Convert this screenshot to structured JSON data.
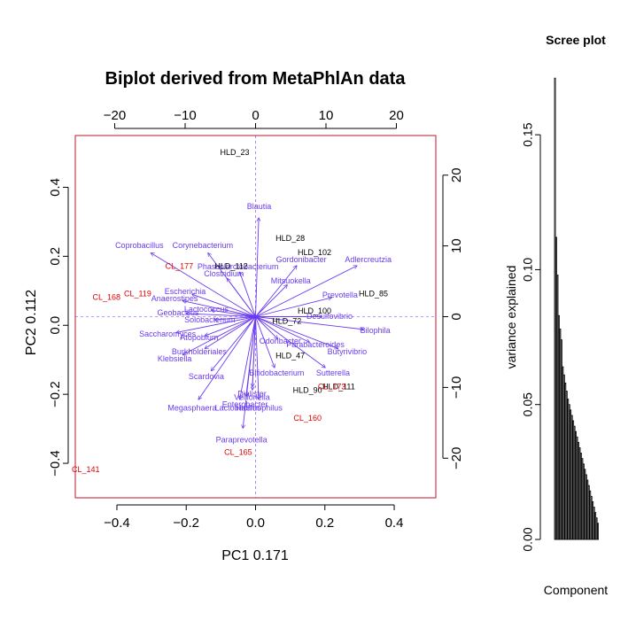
{
  "chart_data": [
    {
      "type": "scatter",
      "title": "Biplot derived from MetaPhlAn data",
      "xlabel": "PC1 0.171",
      "ylabel": "PC2 0.112",
      "xlim": [
        -0.52,
        0.52
      ],
      "ylim": [
        -0.5,
        0.55
      ],
      "x_ticks": [
        "−0.4",
        "−0.2",
        "0.0",
        "0.2",
        "0.4"
      ],
      "x_tick_values": [
        -0.4,
        -0.2,
        0.0,
        0.2,
        0.4
      ],
      "y_ticks": [
        "−0.4",
        "−0.2",
        "0.0",
        "0.2",
        "0.4"
      ],
      "y_tick_values": [
        -0.4,
        -0.2,
        0.0,
        0.2,
        0.4
      ],
      "top_ticks": [
        "−20",
        "−10",
        "0",
        "10",
        "20"
      ],
      "top_tick_values": [
        -20,
        -10,
        0,
        10,
        20
      ],
      "right_ticks": [
        "−20",
        "−10",
        "0",
        "10",
        "20"
      ],
      "right_tick_values": [
        -20,
        -10,
        0,
        10,
        20
      ],
      "secondary_lim": [
        -25.6,
        25.6
      ],
      "colors": {
        "loadings": "#6a3af0",
        "samples_hld": "#000000",
        "samples_cl": "#e00000",
        "frame": "#c0152a"
      },
      "samples": [
        {
          "label": "HLD_23",
          "x": -0.06,
          "y": 0.5,
          "group": "HLD"
        },
        {
          "label": "HLD_28",
          "x": 0.1,
          "y": 0.25,
          "group": "HLD"
        },
        {
          "label": "HLD_102",
          "x": 0.17,
          "y": 0.21,
          "group": "HLD"
        },
        {
          "label": "HLD_112",
          "x": -0.07,
          "y": 0.17,
          "group": "HLD"
        },
        {
          "label": "HLD_85",
          "x": 0.34,
          "y": 0.09,
          "group": "HLD"
        },
        {
          "label": "HLD_100",
          "x": 0.17,
          "y": 0.04,
          "group": "HLD"
        },
        {
          "label": "HLD_72",
          "x": 0.09,
          "y": 0.01,
          "group": "HLD"
        },
        {
          "label": "HLD_47",
          "x": 0.1,
          "y": -0.09,
          "group": "HLD"
        },
        {
          "label": "HLD_90",
          "x": 0.15,
          "y": -0.19,
          "group": "HLD"
        },
        {
          "label": "HLD_111",
          "x": 0.24,
          "y": -0.18,
          "group": "HLD"
        },
        {
          "label": "CL_177",
          "x": -0.22,
          "y": 0.17,
          "group": "CL"
        },
        {
          "label": "CL_168",
          "x": -0.43,
          "y": 0.08,
          "group": "CL"
        },
        {
          "label": "CL_119",
          "x": -0.34,
          "y": 0.09,
          "group": "CL"
        },
        {
          "label": "CL_173",
          "x": 0.22,
          "y": -0.18,
          "group": "CL"
        },
        {
          "label": "CL_160",
          "x": 0.15,
          "y": -0.27,
          "group": "CL"
        },
        {
          "label": "CL_165",
          "x": -0.05,
          "y": -0.37,
          "group": "CL"
        },
        {
          "label": "CL_141",
          "x": -0.49,
          "y": -0.42,
          "group": "CL"
        }
      ],
      "loadings": [
        {
          "label": "Blautia",
          "x": 0.5,
          "y": 15.5
        },
        {
          "label": "Coprobacillus",
          "x": -16.5,
          "y": 10.0
        },
        {
          "label": "Corynebacterium",
          "x": -7.5,
          "y": 10.0
        },
        {
          "label": "Gordonibacter",
          "x": 6.5,
          "y": 8.0
        },
        {
          "label": "Adlercreutzia",
          "x": 16.0,
          "y": 8.0
        },
        {
          "label": "Phascolarctobacterium",
          "x": -2.5,
          "y": 7.0
        },
        {
          "label": "Clostridium",
          "x": -4.5,
          "y": 6.0
        },
        {
          "label": "Mitsuokella",
          "x": 5.0,
          "y": 5.0
        },
        {
          "label": "Escherichia",
          "x": -10.0,
          "y": 3.5
        },
        {
          "label": "Prevotella",
          "x": 12.0,
          "y": 3.0
        },
        {
          "label": "Anaerostipes",
          "x": -11.5,
          "y": 2.5
        },
        {
          "label": "Geobacillus",
          "x": -11.0,
          "y": 0.5
        },
        {
          "label": "Lactococcus",
          "x": -7.0,
          "y": 1.0
        },
        {
          "label": "Solobacterium",
          "x": -6.5,
          "y": -0.5
        },
        {
          "label": "Desulfovibrio",
          "x": 10.5,
          "y": 0.0
        },
        {
          "label": "Bilophila",
          "x": 17.0,
          "y": -2.0
        },
        {
          "label": "Saccharomyces",
          "x": -12.5,
          "y": -2.5
        },
        {
          "label": "Atopobium",
          "x": -8.0,
          "y": -3.0
        },
        {
          "label": "Odoribacter",
          "x": 3.5,
          "y": -3.5
        },
        {
          "label": "Parabacteroides",
          "x": 8.5,
          "y": -4.0
        },
        {
          "label": "Butyrivibrio",
          "x": 13.0,
          "y": -5.0
        },
        {
          "label": "Burkholderiales",
          "x": -8.0,
          "y": -5.0
        },
        {
          "label": "Klebsiella",
          "x": -11.5,
          "y": -6.0
        },
        {
          "label": "Sutterella",
          "x": 11.0,
          "y": -8.0
        },
        {
          "label": "Scardovia",
          "x": -7.0,
          "y": -8.5
        },
        {
          "label": "Bifidobacterium",
          "x": 3.0,
          "y": -8.0
        },
        {
          "label": "Dialister",
          "x": -0.5,
          "y": -11.0
        },
        {
          "label": "Veillonella",
          "x": -0.5,
          "y": -11.5
        },
        {
          "label": "Megasphaera",
          "x": -9.0,
          "y": -13.0
        },
        {
          "label": "Enterobacter",
          "x": -1.5,
          "y": -12.5
        },
        {
          "label": "Lactobacillus",
          "x": -2.5,
          "y": -13.0
        },
        {
          "label": "Haemophilus",
          "x": 0.5,
          "y": -13.0
        },
        {
          "label": "Paraprevotella",
          "x": -2.0,
          "y": -17.5
        }
      ]
    },
    {
      "type": "bar",
      "title": "Scree plot",
      "xlabel": "Component",
      "ylabel": "variance explained",
      "ylim": [
        0.0,
        0.175
      ],
      "y_ticks": [
        "0.00",
        "0.05",
        "0.10",
        "0.15"
      ],
      "y_tick_values": [
        0.0,
        0.05,
        0.1,
        0.15
      ],
      "values": [
        0.171,
        0.112,
        0.098,
        0.083,
        0.078,
        0.074,
        0.064,
        0.061,
        0.058,
        0.055,
        0.052,
        0.05,
        0.048,
        0.046,
        0.044,
        0.042,
        0.04,
        0.038,
        0.036,
        0.034,
        0.032,
        0.03,
        0.028,
        0.026,
        0.024,
        0.022,
        0.02,
        0.018,
        0.016,
        0.014,
        0.012,
        0.01,
        0.008,
        0.006
      ]
    }
  ]
}
